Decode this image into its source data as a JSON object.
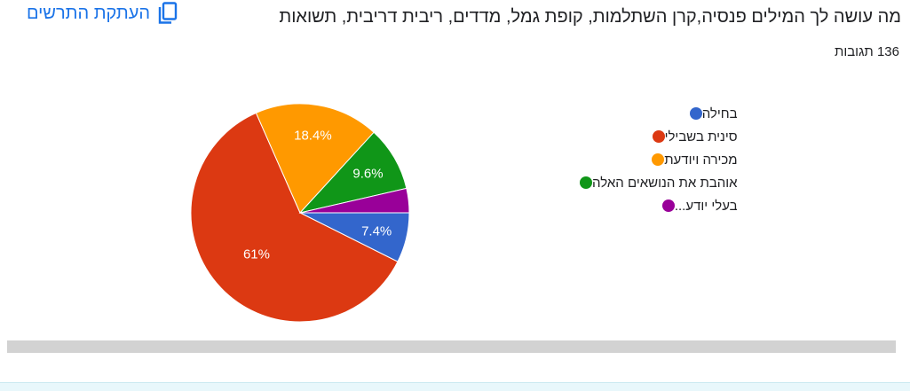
{
  "question": {
    "title": "מה עושה לך המילים פנסיה,קרן השתלמות, קופת גמל, מדדים, ריבית דריבית, תשואות"
  },
  "copy_button": {
    "label": "העתקת התרשים",
    "icon": "copy-icon"
  },
  "responses": {
    "count_text": "136 תגובות"
  },
  "colors": {
    "blue": "#3366cc",
    "red": "#dc3912",
    "orange": "#ff9900",
    "green": "#109618",
    "purple": "#990099"
  },
  "chart_data": {
    "type": "pie",
    "categories": [
      "בחילה",
      "סינית בשבילי",
      "מכירה ויודעת",
      "אוהבת את הנושאים האלה",
      "בעלי יודע..."
    ],
    "values": [
      7.4,
      61,
      18.4,
      9.6,
      3.6
    ],
    "data_labels": [
      "7.4%",
      "61%",
      "18.4%",
      "9.6%",
      ""
    ],
    "colors": [
      "#3366cc",
      "#dc3912",
      "#ff9900",
      "#109618",
      "#990099"
    ],
    "legend_position": "right"
  }
}
